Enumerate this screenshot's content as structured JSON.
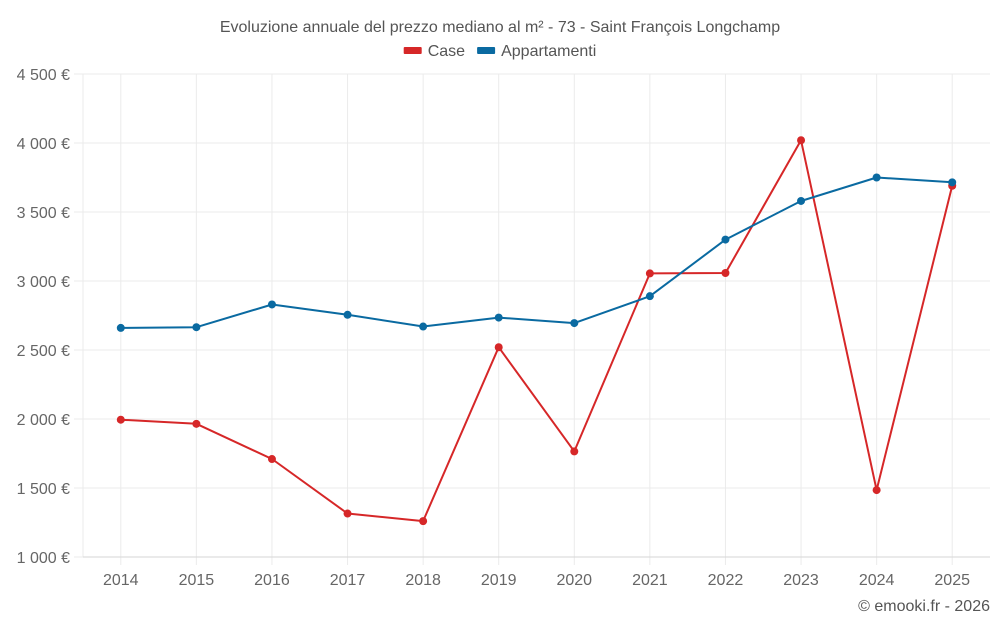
{
  "chart_data": {
    "type": "line",
    "title": "Evoluzione annuale del prezzo mediano al m² - 73 - Saint François Longchamp",
    "xlabel": "",
    "ylabel": "",
    "x": [
      "2014",
      "2015",
      "2016",
      "2017",
      "2018",
      "2019",
      "2020",
      "2021",
      "2022",
      "2023",
      "2024",
      "2025"
    ],
    "ylim": [
      1000,
      4500
    ],
    "yticks": [
      1000,
      1500,
      2000,
      2500,
      3000,
      3500,
      4000,
      4500
    ],
    "ytick_labels": [
      "1 000 €",
      "1 500 €",
      "2 000 €",
      "2 500 €",
      "3 000 €",
      "3 500 €",
      "4 000 €",
      "4 500 €"
    ],
    "grid": true,
    "legend_position": "top-center",
    "series": [
      {
        "name": "Case",
        "color": "#d62728",
        "values": [
          1995,
          1965,
          1710,
          1315,
          1260,
          2520,
          1765,
          3055,
          3058,
          4020,
          1485,
          3690
        ]
      },
      {
        "name": "Appartamenti",
        "color": "#0a6aa1",
        "values": [
          2660,
          2665,
          2830,
          2755,
          2670,
          2735,
          2695,
          2890,
          3300,
          3580,
          3750,
          3715
        ]
      }
    ],
    "credit": "© emooki.fr - 2026"
  }
}
